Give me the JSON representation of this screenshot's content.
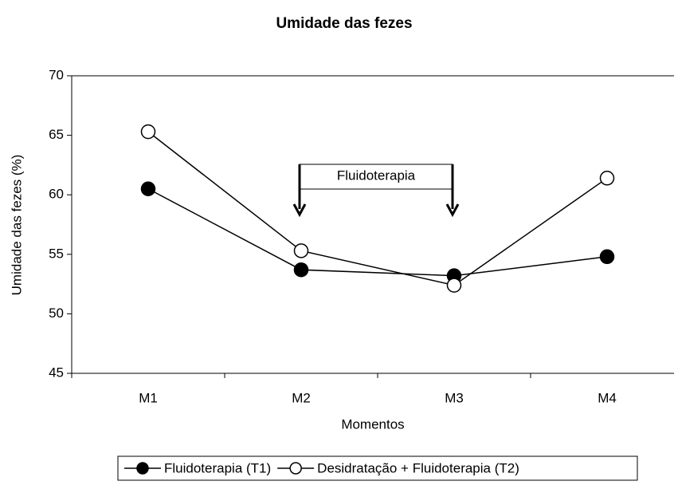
{
  "chart_data": {
    "type": "line",
    "title": "Umidade das fezes",
    "xlabel": "Momentos",
    "ylabel": "Umidade das fezes (%)",
    "categories": [
      "M1",
      "M2",
      "M3",
      "M4"
    ],
    "series": [
      {
        "name": "Fluidoterapia (T1)",
        "color": "#000000",
        "marker": "filled",
        "values": [
          60.5,
          53.7,
          53.2,
          54.8
        ]
      },
      {
        "name": "Desidratação + Fluidoterapia (T2)",
        "color": "#000000",
        "marker": "open",
        "values": [
          65.3,
          55.3,
          52.4,
          61.4
        ]
      }
    ],
    "ylim": [
      45,
      70
    ],
    "yticks": [
      45,
      50,
      55,
      60,
      65,
      70
    ],
    "annotation": "Fluidoterapia",
    "legend": "bottom"
  }
}
